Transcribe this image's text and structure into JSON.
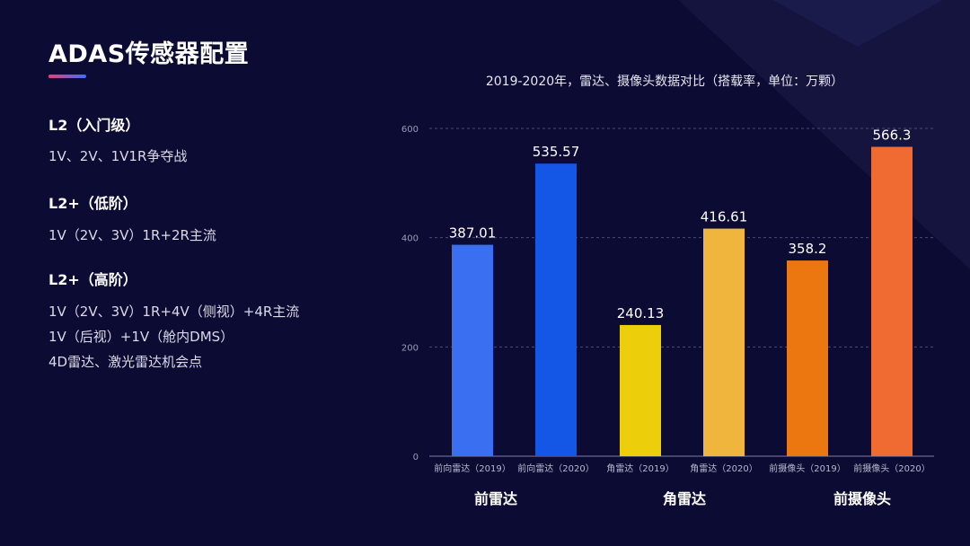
{
  "page": {
    "title": "ADAS传感器配置"
  },
  "levels": [
    {
      "heading": "L2（入门级）",
      "lines": [
        "1V、2V、1V1R争夺战"
      ]
    },
    {
      "heading": "L2+（低阶）",
      "lines": [
        "1V（2V、3V）1R+2R主流"
      ]
    },
    {
      "heading": "L2+（高阶）",
      "lines": [
        "1V（2V、3V）1R+4V（侧视）+4R主流",
        "1V（后视）+1V（舱内DMS）",
        "4D雷达、激光雷达机会点"
      ]
    }
  ],
  "chart_data": {
    "type": "bar",
    "title": "2019-2020年，雷达、摄像头数据对比（搭载率，单位：万颗）",
    "categories": [
      "前向雷达（2019）",
      "前向雷达（2020）",
      "角雷达（2019）",
      "角雷达（2020）",
      "前摄像头（2019）",
      "前摄像头（2020）"
    ],
    "values": [
      387.01,
      535.57,
      240.13,
      416.61,
      358.2,
      566.3
    ],
    "value_labels": [
      "387.01",
      "535.57",
      "240.13",
      "416.61",
      "358.2",
      "566.3"
    ],
    "colors": [
      "#3a6ff2",
      "#1456e6",
      "#edce0a",
      "#efb53c",
      "#ec760f",
      "#ef6b31"
    ],
    "yticks": [
      0,
      200,
      400,
      600
    ],
    "ylim": [
      0,
      600
    ],
    "grid": true,
    "groups": [
      "前雷达",
      "角雷达",
      "前摄像头"
    ],
    "xlabel": "",
    "ylabel": ""
  }
}
